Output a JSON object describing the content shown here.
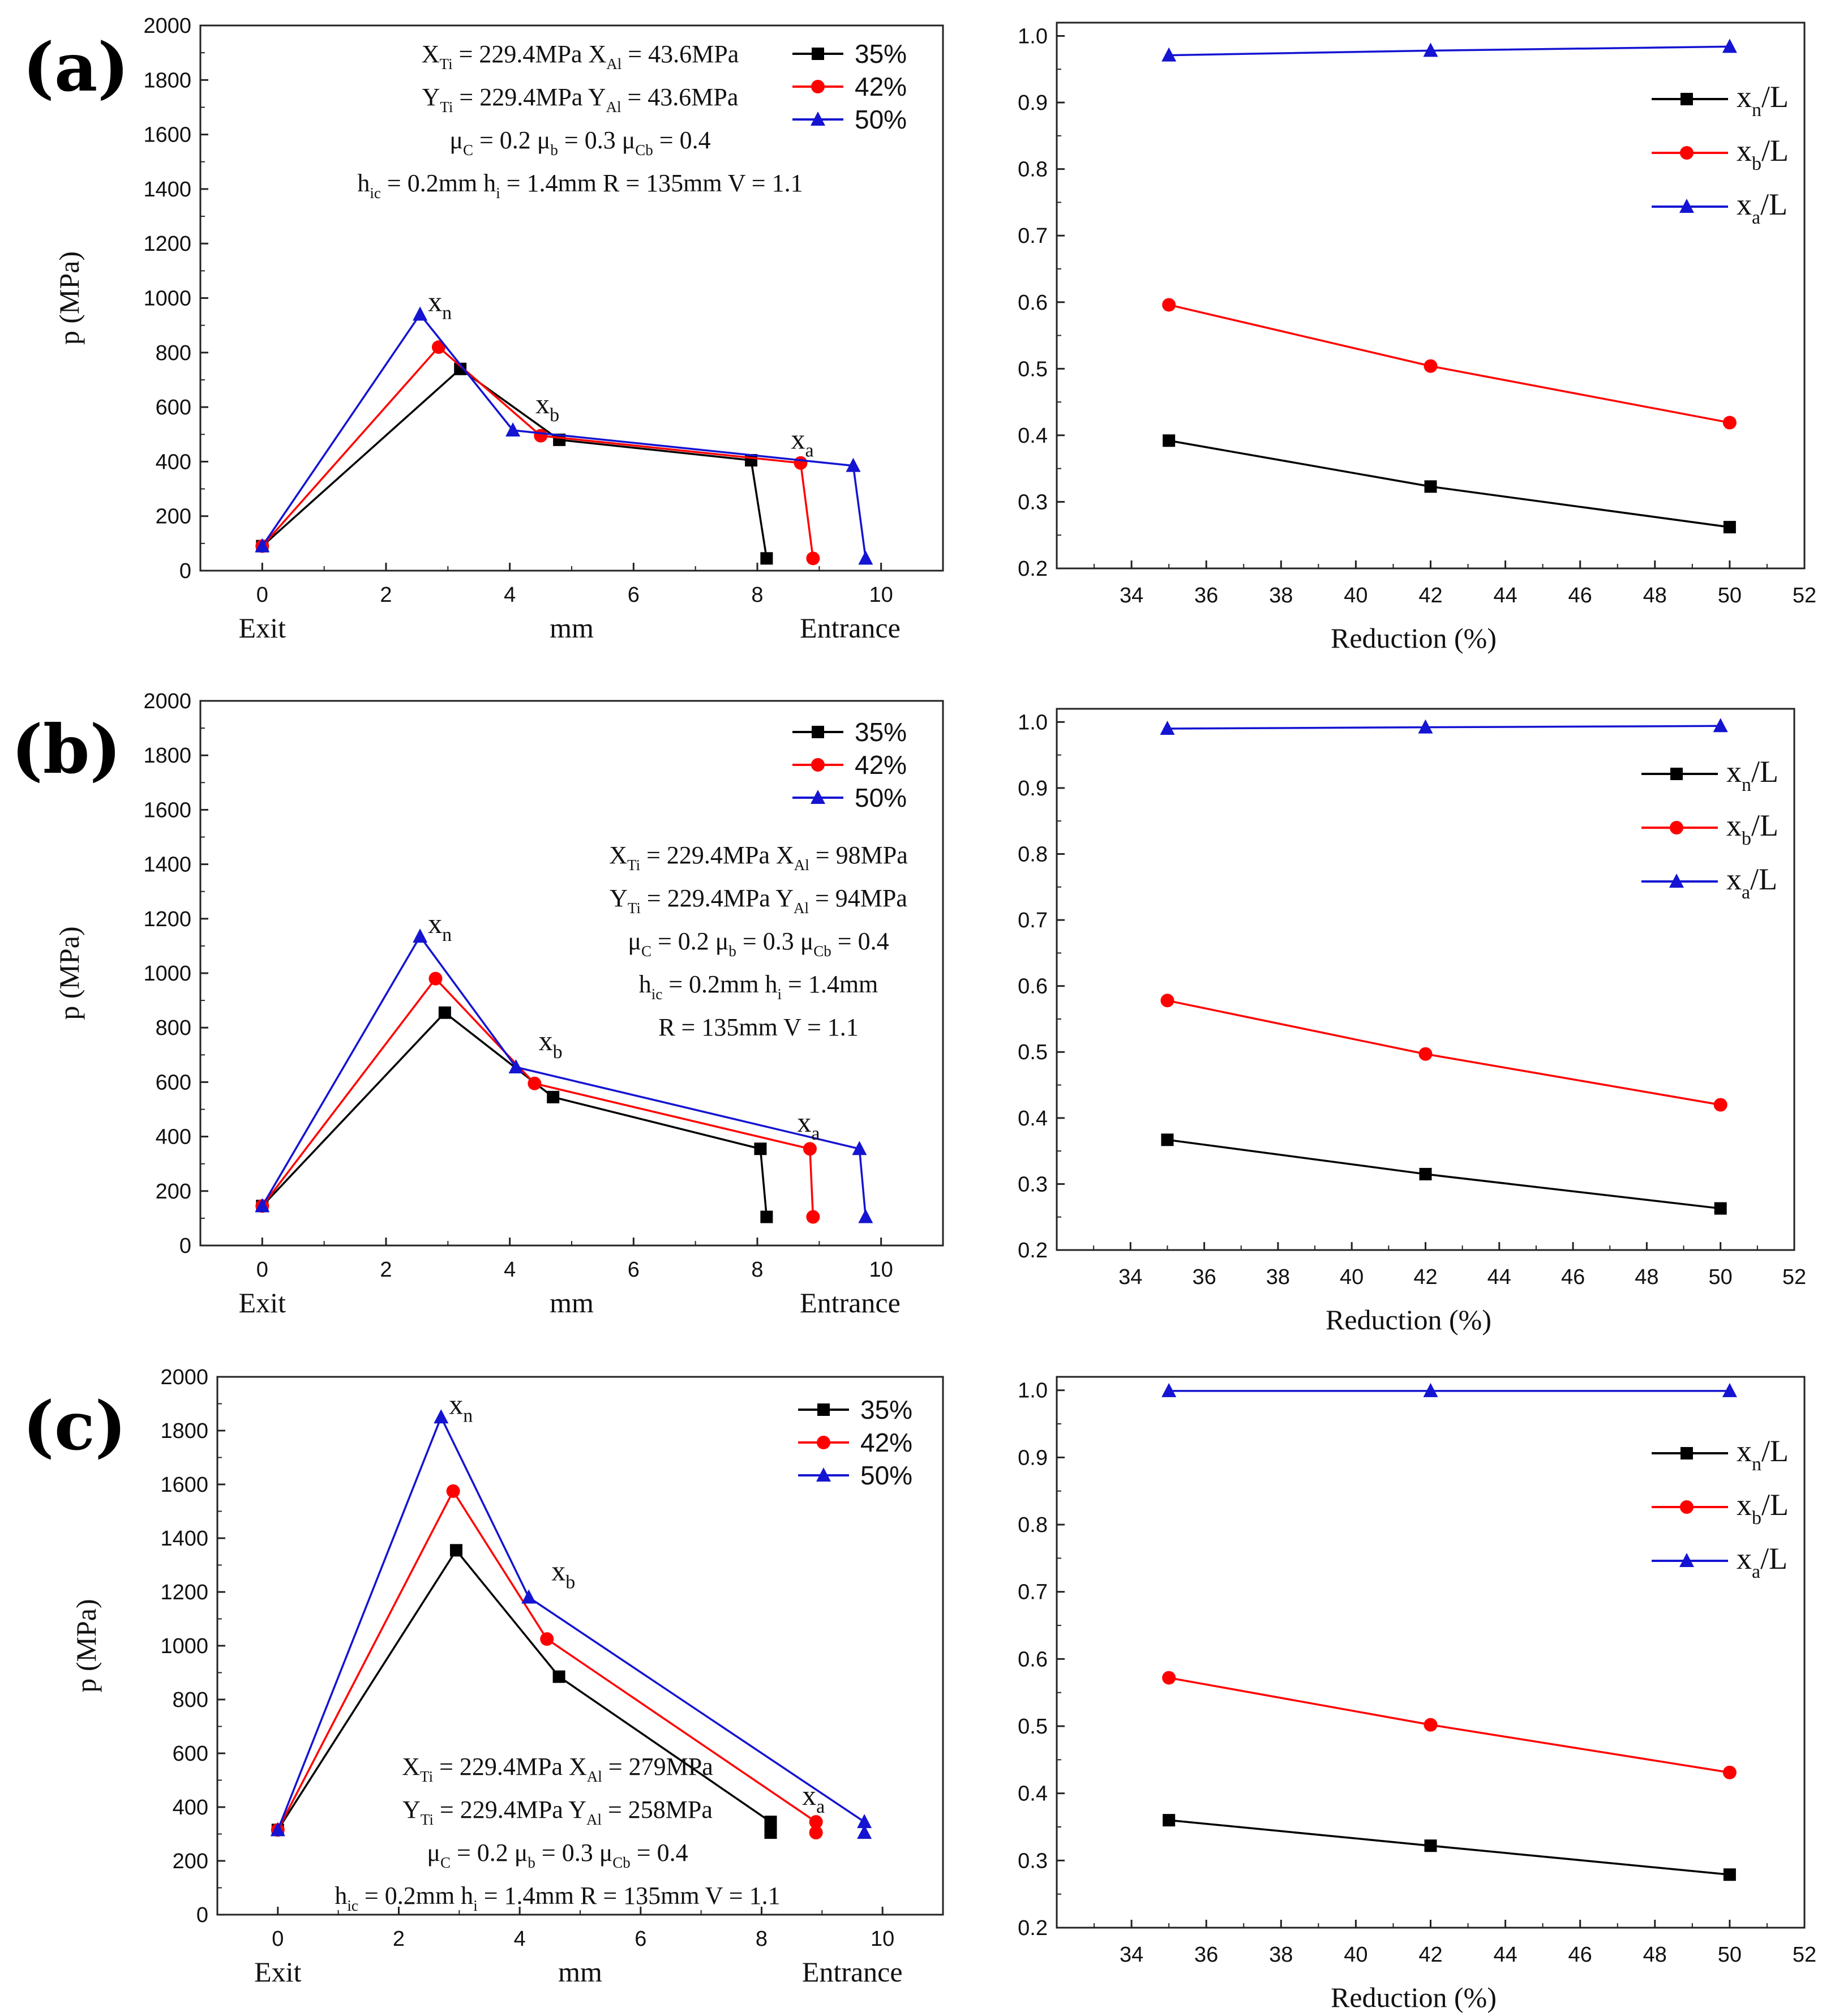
{
  "colors": {
    "35%": "#000000",
    "42%": "#ff0000",
    "50%": "#1414d2",
    "xn/L": "#000000",
    "xb/L": "#ff0000",
    "xa/L": "#1414d2"
  },
  "panels": [
    {
      "label": "(a)",
      "annotation_lines": [
        [
          {
            "t": "X"
          },
          {
            "s": "Ti"
          },
          {
            "t": " = 229.4MPa   X"
          },
          {
            "s": "Al"
          },
          {
            "t": " = 43.6MPa"
          }
        ],
        [
          {
            "t": "Y"
          },
          {
            "s": "Ti"
          },
          {
            "t": " = 229.4MPa  Y"
          },
          {
            "s": "Al"
          },
          {
            "t": " = 43.6MPa"
          }
        ],
        [
          {
            "t": "μ"
          },
          {
            "s": "C"
          },
          {
            "t": " = 0.2   μ"
          },
          {
            "s": "b"
          },
          {
            "t": " = 0.3   μ"
          },
          {
            "s": "Cb"
          },
          {
            "t": " = 0.4"
          }
        ],
        [
          {
            "t": "h"
          },
          {
            "s": "ic"
          },
          {
            "t": " = 0.2mm   h"
          },
          {
            "s": "i"
          },
          {
            "t": " = 1.4mm   R = 135mm   V = 1.1"
          }
        ]
      ],
      "markers": {
        "xn": "x",
        "xn_sub": "n",
        "xb": "x",
        "xb_sub": "b",
        "xa": "x",
        "xa_sub": "a"
      },
      "chart_data": [
        {
          "type": "line",
          "title": "",
          "xlabel": "mm",
          "xlabel_left": "Exit",
          "xlabel_right": "Entrance",
          "ylabel": "p (MPa)",
          "xlim": [
            -1,
            11
          ],
          "ylim": [
            0,
            2000
          ],
          "xticks": [
            "0",
            "2",
            "4",
            "6",
            "8",
            "10"
          ],
          "yticks": [
            "0",
            "200",
            "400",
            "600",
            "800",
            "1000",
            "1200",
            "1400",
            "1600",
            "1800",
            "2000"
          ],
          "series": [
            {
              "name": "35%",
              "marker": "square",
              "x": [
                0,
                3.2,
                4.8,
                7.9,
                8.15
              ],
              "y": [
                90,
                740,
                480,
                405,
                45
              ]
            },
            {
              "name": "42%",
              "marker": "circle",
              "x": [
                0,
                2.85,
                4.5,
                8.7,
                8.9
              ],
              "y": [
                90,
                820,
                495,
                395,
                45
              ]
            },
            {
              "name": "50%",
              "marker": "triangle",
              "x": [
                0,
                2.55,
                4.05,
                9.55,
                9.75
              ],
              "y": [
                90,
                940,
                515,
                385,
                45
              ]
            }
          ]
        },
        {
          "type": "line",
          "title": "",
          "xlabel": "Reduction (%)",
          "ylabel": "",
          "xlim": [
            32,
            52
          ],
          "ylim": [
            0.2,
            1.02
          ],
          "xticks": [
            "34",
            "36",
            "38",
            "40",
            "42",
            "44",
            "46",
            "48",
            "50",
            "52"
          ],
          "yticks": [
            "0.2",
            "0.3",
            "0.4",
            "0.5",
            "0.6",
            "0.7",
            "0.8",
            "0.9",
            "1.0"
          ],
          "series": [
            {
              "name": "xn/L",
              "marker": "square",
              "x": [
                35,
                42,
                50
              ],
              "y": [
                0.392,
                0.323,
                0.262
              ]
            },
            {
              "name": "xb/L",
              "marker": "circle",
              "x": [
                35,
                42,
                50
              ],
              "y": [
                0.596,
                0.504,
                0.419
              ]
            },
            {
              "name": "xa/L",
              "marker": "triangle",
              "x": [
                35,
                42,
                50
              ],
              "y": [
                0.971,
                0.978,
                0.984
              ]
            }
          ]
        }
      ]
    },
    {
      "label": "(b)",
      "annotation_lines": [
        [
          {
            "t": "X"
          },
          {
            "s": "Ti"
          },
          {
            "t": " = 229.4MPa    X"
          },
          {
            "s": "Al"
          },
          {
            "t": " = 98MPa"
          }
        ],
        [
          {
            "t": "Y"
          },
          {
            "s": "Ti"
          },
          {
            "t": " = 229.4MPa   Y"
          },
          {
            "s": "Al"
          },
          {
            "t": " = 94MPa"
          }
        ],
        [
          {
            "t": "μ"
          },
          {
            "s": "C"
          },
          {
            "t": " = 0.2   μ"
          },
          {
            "s": "b"
          },
          {
            "t": " = 0.3   μ"
          },
          {
            "s": "Cb"
          },
          {
            "t": " = 0.4"
          }
        ],
        [
          {
            "t": "h"
          },
          {
            "s": "ic"
          },
          {
            "t": " = 0.2mm    h"
          },
          {
            "s": "i"
          },
          {
            "t": " = 1.4mm"
          }
        ],
        [
          {
            "t": "R = 135mm    V = 1.1"
          }
        ]
      ],
      "markers": {
        "xn": "x",
        "xn_sub": "n",
        "xb": "x",
        "xb_sub": "b",
        "xa": "x",
        "xa_sub": "a"
      },
      "chart_data": [
        {
          "type": "line",
          "title": "",
          "xlabel": "mm",
          "xlabel_left": "Exit",
          "xlabel_right": "Entrance",
          "ylabel": "p (MPa)",
          "xlim": [
            -1,
            11
          ],
          "ylim": [
            0,
            2000
          ],
          "xticks": [
            "0",
            "2",
            "4",
            "6",
            "8",
            "10"
          ],
          "yticks": [
            "0",
            "200",
            "400",
            "600",
            "800",
            "1000",
            "1200",
            "1400",
            "1600",
            "1800",
            "2000"
          ],
          "series": [
            {
              "name": "35%",
              "marker": "square",
              "x": [
                0,
                2.95,
                4.7,
                8.05,
                8.15
              ],
              "y": [
                145,
                855,
                545,
                355,
                105
              ]
            },
            {
              "name": "42%",
              "marker": "circle",
              "x": [
                0,
                2.8,
                4.4,
                8.85,
                8.9
              ],
              "y": [
                145,
                980,
                595,
                355,
                105
              ]
            },
            {
              "name": "50%",
              "marker": "triangle",
              "x": [
                0,
                2.55,
                4.1,
                9.65,
                9.75
              ],
              "y": [
                145,
                1135,
                655,
                355,
                105
              ]
            }
          ]
        },
        {
          "type": "line",
          "title": "",
          "xlabel": "Reduction (%)",
          "ylabel": "",
          "xlim": [
            32,
            52
          ],
          "ylim": [
            0.2,
            1.02
          ],
          "xticks": [
            "34",
            "36",
            "38",
            "40",
            "42",
            "44",
            "46",
            "48",
            "50",
            "52"
          ],
          "yticks": [
            "0.2",
            "0.3",
            "0.4",
            "0.5",
            "0.6",
            "0.7",
            "0.8",
            "0.9",
            "1.0"
          ],
          "series": [
            {
              "name": "xn/L",
              "marker": "square",
              "x": [
                35,
                42,
                50
              ],
              "y": [
                0.367,
                0.315,
                0.263
              ]
            },
            {
              "name": "xb/L",
              "marker": "circle",
              "x": [
                35,
                42,
                50
              ],
              "y": [
                0.578,
                0.497,
                0.42
              ]
            },
            {
              "name": "xa/L",
              "marker": "triangle",
              "x": [
                35,
                42,
                50
              ],
              "y": [
                0.99,
                0.992,
                0.994
              ]
            }
          ]
        }
      ]
    },
    {
      "label": "(c)",
      "annotation_lines": [
        [
          {
            "t": "X"
          },
          {
            "s": "Ti"
          },
          {
            "t": " = 229.4MPa   X"
          },
          {
            "s": "Al"
          },
          {
            "t": " = 279MPa"
          }
        ],
        [
          {
            "t": "Y"
          },
          {
            "s": "Ti"
          },
          {
            "t": " = 229.4MPa    Y"
          },
          {
            "s": "Al"
          },
          {
            "t": " = 258MPa"
          }
        ],
        [
          {
            "t": "μ"
          },
          {
            "s": "C"
          },
          {
            "t": " = 0.2   μ"
          },
          {
            "s": "b"
          },
          {
            "t": " = 0.3   μ"
          },
          {
            "s": "Cb"
          },
          {
            "t": " = 0.4"
          }
        ],
        [
          {
            "t": "h"
          },
          {
            "s": "ic"
          },
          {
            "t": " = 0.2mm   h"
          },
          {
            "s": "i"
          },
          {
            "t": " = 1.4mm    R = 135mm    V = 1.1"
          }
        ]
      ],
      "markers": {
        "xn": "x",
        "xn_sub": "n",
        "xb": "x",
        "xb_sub": "b",
        "xa": "x",
        "xa_sub": "a"
      },
      "chart_data": [
        {
          "type": "line",
          "title": "",
          "xlabel": "mm",
          "xlabel_left": "Exit",
          "xlabel_right": "Entrance",
          "ylabel": "p (MPa)",
          "xlim": [
            -1,
            11
          ],
          "ylim": [
            0,
            2000
          ],
          "xticks": [
            "0",
            "2",
            "4",
            "6",
            "8",
            "10"
          ],
          "yticks": [
            "0",
            "200",
            "400",
            "600",
            "800",
            "1000",
            "1200",
            "1400",
            "1600",
            "1800",
            "2000"
          ],
          "series": [
            {
              "name": "35%",
              "marker": "square",
              "x": [
                0,
                2.95,
                4.65,
                8.15,
                8.15
              ],
              "y": [
                315,
                1355,
                885,
                345,
                305
              ]
            },
            {
              "name": "42%",
              "marker": "circle",
              "x": [
                0,
                2.9,
                4.45,
                8.9,
                8.9
              ],
              "y": [
                315,
                1575,
                1025,
                345,
                305
              ]
            },
            {
              "name": "50%",
              "marker": "triangle",
              "x": [
                0,
                2.7,
                4.15,
                9.7,
                9.7
              ],
              "y": [
                315,
                1850,
                1180,
                345,
                305
              ]
            }
          ]
        },
        {
          "type": "line",
          "title": "",
          "xlabel": "Reduction (%)",
          "ylabel": "",
          "xlim": [
            32,
            52
          ],
          "ylim": [
            0.2,
            1.02
          ],
          "xticks": [
            "34",
            "36",
            "38",
            "40",
            "42",
            "44",
            "46",
            "48",
            "50",
            "52"
          ],
          "yticks": [
            "0.2",
            "0.3",
            "0.4",
            "0.5",
            "0.6",
            "0.7",
            "0.8",
            "0.9",
            "1.0"
          ],
          "series": [
            {
              "name": "xn/L",
              "marker": "square",
              "x": [
                35,
                42,
                50
              ],
              "y": [
                0.36,
                0.322,
                0.279
              ]
            },
            {
              "name": "xb/L",
              "marker": "circle",
              "x": [
                35,
                42,
                50
              ],
              "y": [
                0.572,
                0.502,
                0.431
              ]
            },
            {
              "name": "xa/L",
              "marker": "triangle",
              "x": [
                35,
                42,
                50
              ],
              "y": [
                0.999,
                0.999,
                0.999
              ]
            }
          ]
        }
      ]
    }
  ]
}
